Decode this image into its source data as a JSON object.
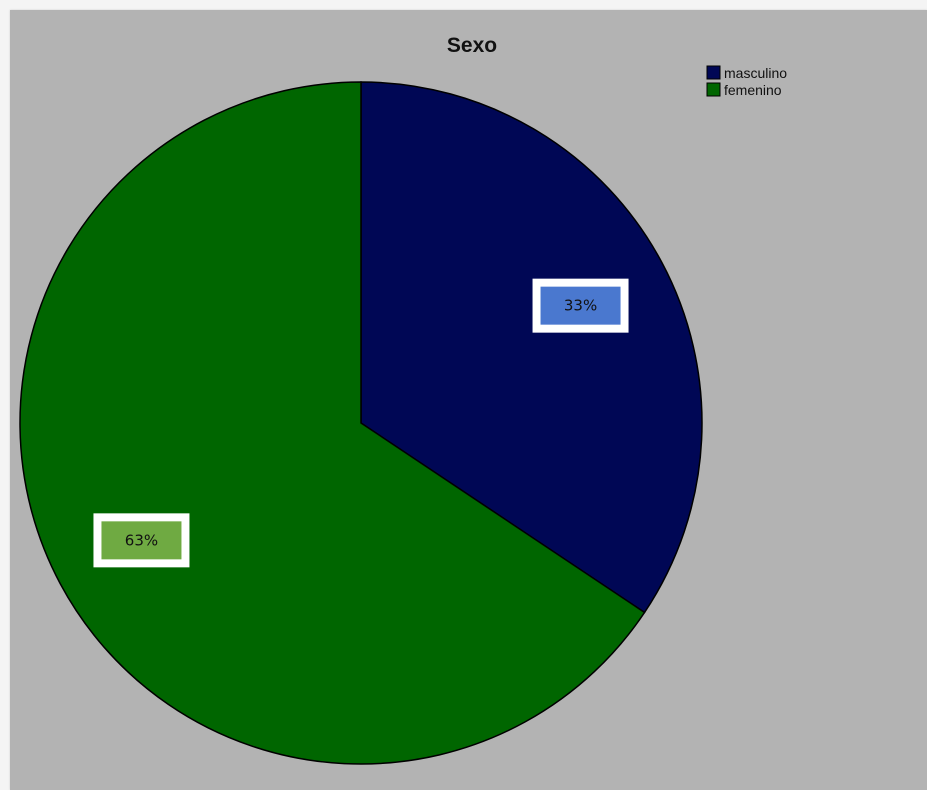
{
  "chart_data": {
    "type": "pie",
    "title": "Sexo",
    "categories": [
      "masculino",
      "femenino"
    ],
    "values": [
      33,
      63
    ],
    "data_labels": [
      "33%",
      "63%"
    ],
    "colors": [
      "#000755",
      "#006600"
    ],
    "label_colors": [
      "#4a78cf",
      "#6faa42"
    ],
    "legend_position": "top-right",
    "start_angle": "12-o'clock",
    "direction": "clockwise"
  }
}
